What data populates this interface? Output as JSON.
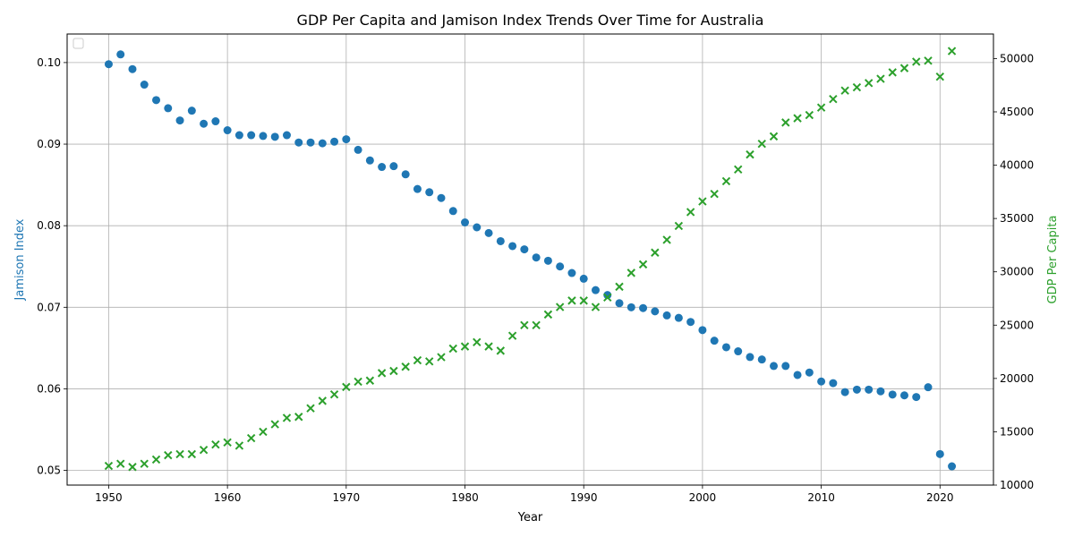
{
  "chart_data": {
    "type": "scatter",
    "title": "GDP Per Capita and Jamison Index Trends Over Time for Australia",
    "xlabel": "Year",
    "ylabel": "Jamison Index",
    "y2label": "GDP Per Capita",
    "xlim": [
      1946.5,
      2024.5
    ],
    "ylim": [
      0.0482,
      0.1035
    ],
    "y2lim": [
      10000,
      52300
    ],
    "xticks": [
      1950,
      1960,
      1970,
      1980,
      1990,
      2000,
      2010,
      2020
    ],
    "yticks": [
      0.05,
      0.06,
      0.07,
      0.08,
      0.09,
      0.1
    ],
    "ytick_labels": [
      "0.05",
      "0.06",
      "0.07",
      "0.08",
      "0.09",
      "0.10"
    ],
    "y2ticks": [
      10000,
      15000,
      20000,
      25000,
      30000,
      35000,
      40000,
      45000,
      50000
    ],
    "grid": true,
    "legend": "top-left (empty)",
    "colors": {
      "jamison": "#1f77b4",
      "gdp": "#2ca02c"
    },
    "x": [
      1950,
      1951,
      1952,
      1953,
      1954,
      1955,
      1956,
      1957,
      1958,
      1959,
      1960,
      1961,
      1962,
      1963,
      1964,
      1965,
      1966,
      1967,
      1968,
      1969,
      1970,
      1971,
      1972,
      1973,
      1974,
      1975,
      1976,
      1977,
      1978,
      1979,
      1980,
      1981,
      1982,
      1983,
      1984,
      1985,
      1986,
      1987,
      1988,
      1989,
      1990,
      1991,
      1992,
      1993,
      1994,
      1995,
      1996,
      1997,
      1998,
      1999,
      2000,
      2001,
      2002,
      2003,
      2004,
      2005,
      2006,
      2007,
      2008,
      2009,
      2010,
      2011,
      2012,
      2013,
      2014,
      2015,
      2016,
      2017,
      2018,
      2019,
      2020,
      2021
    ],
    "series": [
      {
        "marker": "circle",
        "axis": "left",
        "values": [
          0.0998,
          0.101,
          0.0992,
          0.0973,
          0.0954,
          0.0944,
          0.0929,
          0.0941,
          0.0925,
          0.0928,
          0.0917,
          0.0911,
          0.0911,
          0.091,
          0.0909,
          0.0911,
          0.0902,
          0.0902,
          0.0901,
          0.0903,
          0.0906,
          0.0893,
          0.088,
          0.0872,
          0.0873,
          0.0863,
          0.0845,
          0.0841,
          0.0834,
          0.0818,
          0.0804,
          0.0798,
          0.0791,
          0.0781,
          0.0775,
          0.0771,
          0.0761,
          0.0757,
          0.075,
          0.0742,
          0.0735,
          0.0721,
          0.0715,
          0.0705,
          0.07,
          0.0699,
          0.0695,
          0.069,
          0.0687,
          0.0682,
          0.0672,
          0.0659,
          0.0651,
          0.0646,
          0.0639,
          0.0636,
          0.0628,
          0.0628,
          0.0617,
          0.062,
          0.0609,
          0.0607,
          0.0596,
          0.0599,
          0.0599,
          0.0597,
          0.0593,
          0.0592,
          0.059,
          0.0602,
          0.052,
          0.0505
        ]
      },
      {
        "marker": "x",
        "axis": "right",
        "values": [
          11800,
          12000,
          11700,
          12000,
          12400,
          12800,
          12900,
          12900,
          13300,
          13800,
          14000,
          13700,
          14400,
          15000,
          15700,
          16300,
          16400,
          17200,
          17900,
          18500,
          19200,
          19700,
          19800,
          20500,
          20700,
          21100,
          21700,
          21600,
          22000,
          22800,
          23000,
          23400,
          23000,
          22600,
          24000,
          25000,
          25000,
          26000,
          26700,
          27300,
          27300,
          26700,
          27600,
          28600,
          29900,
          30700,
          31800,
          33000,
          34300,
          35600,
          36600,
          37300,
          38500,
          39600,
          41000,
          42000,
          42700,
          44000,
          44400,
          44700,
          45400,
          46200,
          47000,
          47300,
          47700,
          48100,
          48700,
          49100,
          49700,
          49800,
          48300,
          50700
        ]
      }
    ]
  }
}
